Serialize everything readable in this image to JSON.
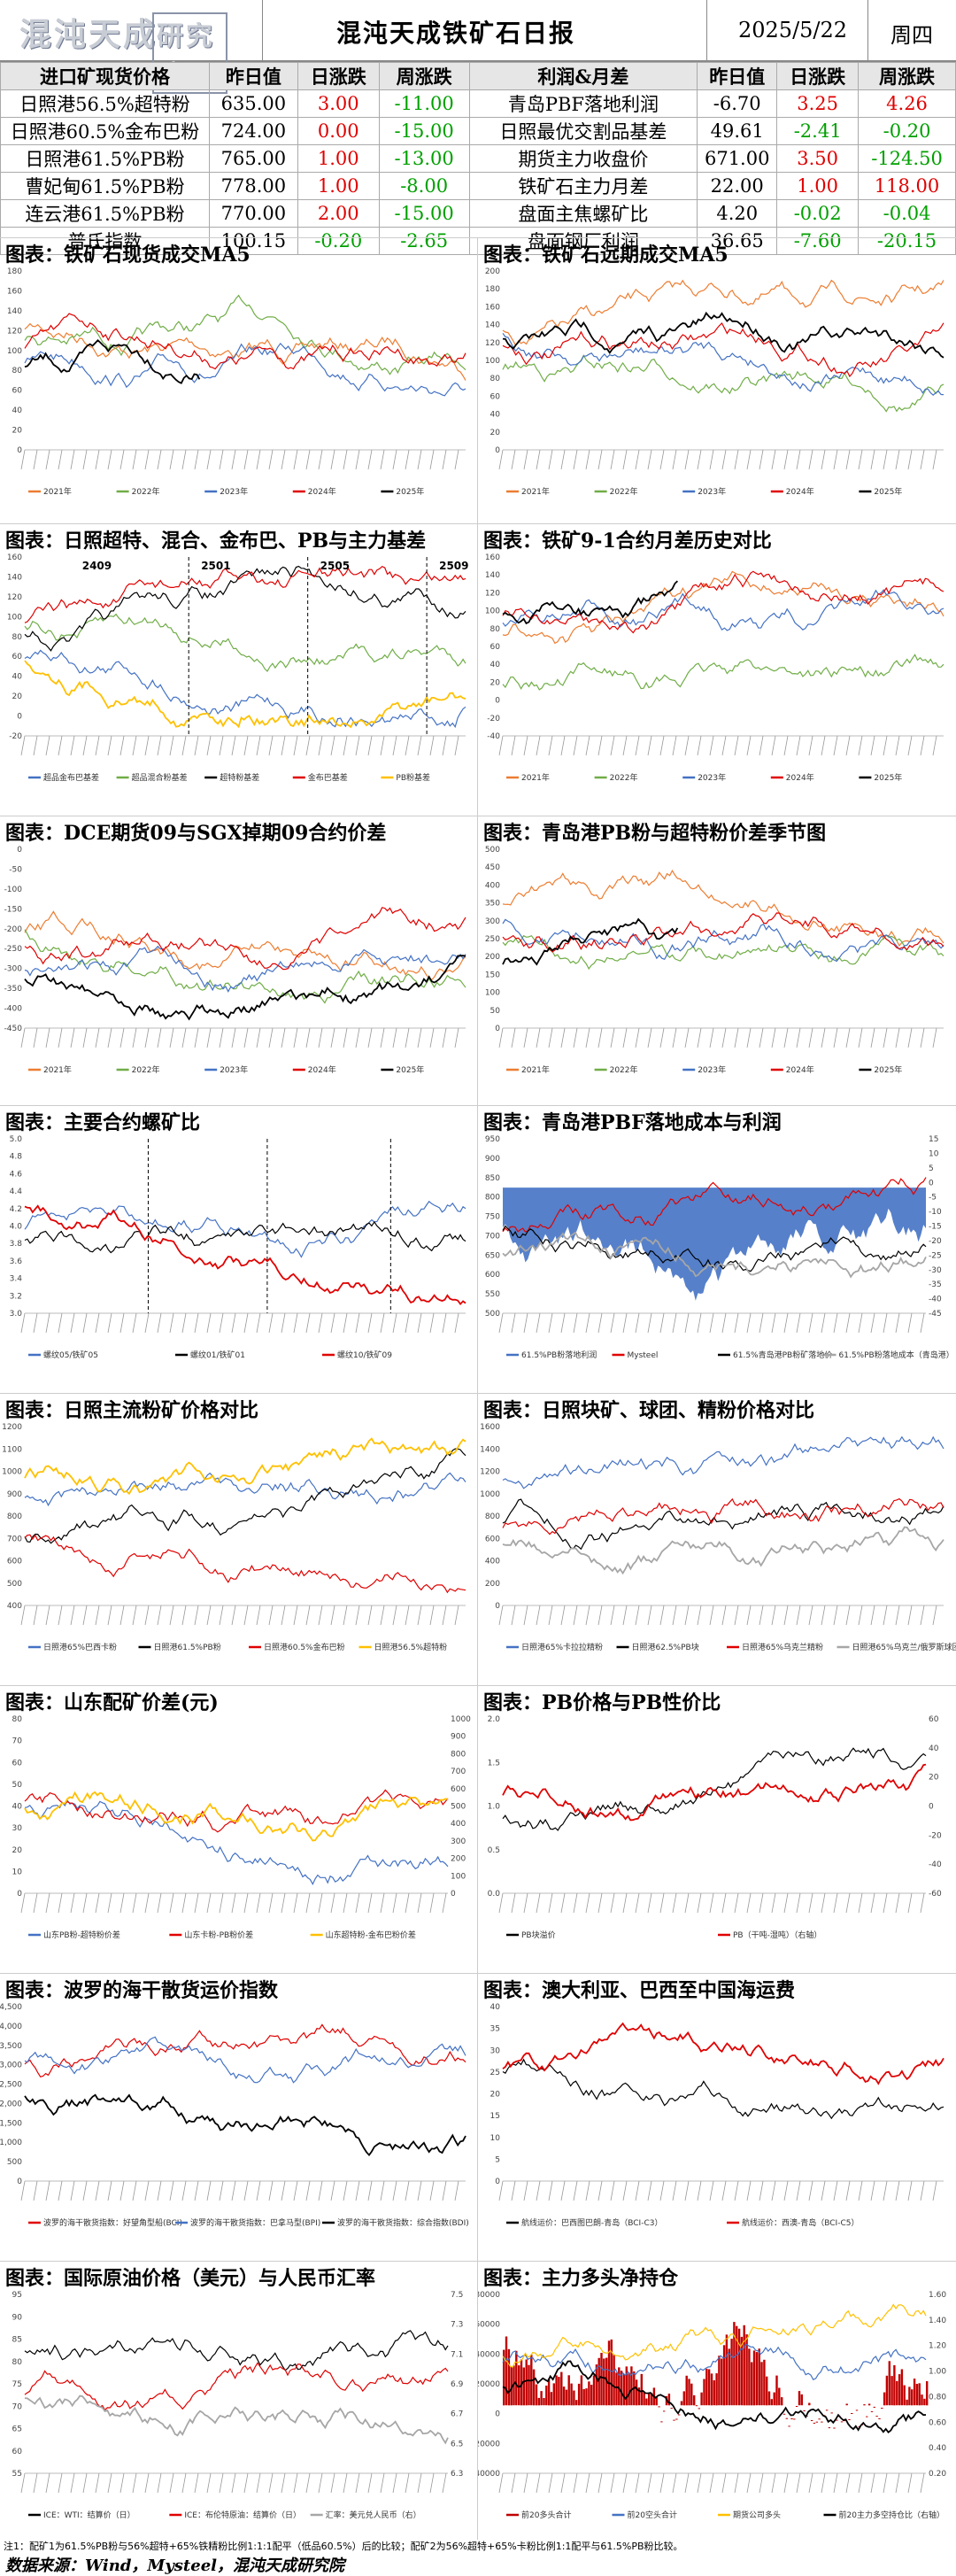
{
  "header": {
    "title": "混沌天成铁矿石日报",
    "date": "2025/5/22",
    "weekday": "周四"
  },
  "table": {
    "left_headers": [
      "进口矿现货价格",
      "昨日值",
      "日涨跌",
      "周涨跌"
    ],
    "right_headers": [
      "利润&月差",
      "昨日值",
      "日涨跌",
      "周涨跌"
    ],
    "left_rows": [
      {
        "name": "日照港56.5%超特粉",
        "value": "635.00",
        "day": "3.00",
        "week": "-11.00"
      },
      {
        "name": "日照港60.5%金布巴粉",
        "value": "724.00",
        "day": "0.00",
        "week": "-15.00"
      },
      {
        "name": "日照港61.5%PB粉",
        "value": "765.00",
        "day": "1.00",
        "week": "-13.00"
      },
      {
        "name": "曹妃甸61.5%PB粉",
        "value": "778.00",
        "day": "1.00",
        "week": "-8.00"
      },
      {
        "name": "连云港61.5%PB粉",
        "value": "770.00",
        "day": "2.00",
        "week": "-15.00"
      },
      {
        "name": "普氏指数",
        "value": "100.15",
        "day": "-0.20",
        "week": "-2.65"
      }
    ],
    "right_rows": [
      {
        "name": "青岛PBF落地利润",
        "value": "-6.70",
        "day": "3.25",
        "week": "4.26"
      },
      {
        "name": "日照最优交割品基差",
        "value": "49.61",
        "day": "-2.41",
        "week": "-0.20"
      },
      {
        "name": "期货主力收盘价",
        "value": "671.00",
        "day": "3.50",
        "week": "-124.50"
      },
      {
        "name": "铁矿石主力月差",
        "value": "22.00",
        "day": "1.00",
        "week": "118.00"
      },
      {
        "name": "盘面主焦螺矿比",
        "value": "4.20",
        "day": "-0.02",
        "week": "-0.04"
      },
      {
        "name": "盘面钢厂利润",
        "value": "36.65",
        "day": "-7.60",
        "week": "-20.15"
      }
    ]
  },
  "panels": [
    {
      "title": "图表：铁矿石现货成交MA5",
      "legend": [
        "2021年",
        "2022年",
        "2023年",
        "2024年",
        "2025年"
      ],
      "yticks": [
        "180",
        "160",
        "140",
        "120",
        "100",
        "80",
        "60",
        "40",
        "20",
        "0"
      ]
    },
    {
      "title": "图表：铁矿石远期成交MA5",
      "legend": [
        "2021年",
        "2022年",
        "2023年",
        "2024年",
        "2025年"
      ],
      "yticks": [
        "200",
        "180",
        "160",
        "140",
        "120",
        "100",
        "80",
        "60",
        "40",
        "20",
        "0"
      ]
    },
    {
      "title": "图表：日照超特、混合、金布巴、PB与主力基差",
      "legend": [
        "超品金布巴基差",
        "超品混合粉基差",
        "超特粉基差",
        "金布巴基差",
        "PB粉基差"
      ],
      "annotations": [
        "2409",
        "2501",
        "2505",
        "2509"
      ],
      "yticks": [
        "160",
        "140",
        "120",
        "100",
        "80",
        "60",
        "40",
        "20",
        "0",
        "-20"
      ]
    },
    {
      "title": "图表：铁矿9-1合约月差历史对比",
      "legend": [
        "2021年",
        "2022年",
        "2023年",
        "2024年",
        "2025年"
      ],
      "yticks": [
        "160",
        "140",
        "120",
        "100",
        "80",
        "60",
        "40",
        "20",
        "0",
        "-20",
        "-40"
      ]
    },
    {
      "title": "图表：DCE期货09与SGX掉期09合约价差",
      "legend": [
        "2021年",
        "2022年",
        "2023年",
        "2024年",
        "2025年"
      ],
      "yticks": [
        "0",
        "-50",
        "-100",
        "-150",
        "-200",
        "-250",
        "-300",
        "-350",
        "-400",
        "-450"
      ]
    },
    {
      "title": "图表：青岛港PB粉与超特粉价差季节图",
      "legend": [
        "2021年",
        "2022年",
        "2023年",
        "2024年",
        "2025年"
      ],
      "yticks": [
        "500",
        "450",
        "400",
        "350",
        "300",
        "250",
        "200",
        "150",
        "100",
        "50",
        "0"
      ]
    },
    {
      "title": "图表：主要合约螺矿比",
      "legend": [
        "螺纹05/铁矿05",
        "螺纹01/铁矿01",
        "螺纹10/铁矿09"
      ],
      "yticks": [
        "5.0",
        "4.8",
        "4.6",
        "4.4",
        "4.2",
        "4.0",
        "3.8",
        "3.6",
        "3.4",
        "3.2",
        "3.0"
      ]
    },
    {
      "title": "图表：青岛港PBF落地成本与利润",
      "legend": [
        "61.5%PB粉落地利润",
        "Mysteel",
        "61.5%青岛港PB粉矿落地价",
        "61.5%PB粉落地成本（青岛港）"
      ],
      "yticks": [
        "950",
        "900",
        "850",
        "800",
        "750",
        "700",
        "650",
        "600",
        "550",
        "500"
      ],
      "yticks_right": [
        "15",
        "10",
        "5",
        "0",
        "-5",
        "-10",
        "-15",
        "-20",
        "-25",
        "-30",
        "-35",
        "-40",
        "-45"
      ]
    },
    {
      "title": "图表：日照主流粉矿价格对比",
      "legend": [
        "日照港65%巴西卡粉",
        "日照港61.5%PB粉",
        "日照港60.5%金布巴粉",
        "日照港56.5%超特粉"
      ],
      "yticks": [
        "1200",
        "1100",
        "1000",
        "900",
        "800",
        "700",
        "600",
        "500",
        "400"
      ]
    },
    {
      "title": "图表：日照块矿、球团、精粉价格对比",
      "legend": [
        "日照港65%卡拉拉精粉",
        "日照港62.5%PB块",
        "日照港65%乌克兰精粉",
        "日照港65%乌克兰/俄罗斯球团"
      ],
      "yticks": [
        "1600",
        "1400",
        "1200",
        "1000",
        "800",
        "600",
        "400",
        "200",
        "0"
      ]
    },
    {
      "title": "图表：山东配矿价差(元)",
      "legend": [
        "山东PB粉-超特粉价差",
        "山东卡粉-PB粉价差",
        "山东超特粉-金布巴粉价差"
      ],
      "yticks": [
        "80",
        "70",
        "60",
        "50",
        "40",
        "30",
        "20",
        "10",
        "0"
      ],
      "yticks_right": [
        "1000",
        "900",
        "800",
        "700",
        "600",
        "500",
        "400",
        "300",
        "200",
        "100",
        "0"
      ]
    },
    {
      "title": "图表：PB价格与PB性价比",
      "legend": [
        "PB块溢价",
        "PB（干吨-湿吨）（右轴）"
      ],
      "yticks": [
        "2.0",
        "1.5",
        "1.0",
        "0.5",
        "0.0"
      ],
      "yticks_right": [
        "60",
        "40",
        "20",
        "0",
        "-20",
        "-40",
        "-60"
      ]
    },
    {
      "title": "图表：波罗的海干散货运价指数",
      "legend": [
        "波罗的海干散货指数：好望角型船(BCI)",
        "波罗的海干散货指数：巴拿马型(BPI)",
        "波罗的海干散货指数：综合指数(BDI)"
      ],
      "yticks": [
        "4,500",
        "4,000",
        "3,500",
        "3,000",
        "2,500",
        "2,000",
        "1,500",
        "1,000",
        "500",
        "0"
      ]
    },
    {
      "title": "图表：澳大利亚、巴西至中国海运费",
      "legend": [
        "航线运价：巴西图巴朗-青岛（BCI-C3）",
        "航线运价：西澳-青岛（BCI-C5）"
      ],
      "yticks": [
        "40",
        "35",
        "30",
        "25",
        "20",
        "15",
        "10",
        "5",
        "0"
      ]
    },
    {
      "title": "图表：国际原油价格（美元）与人民币汇率",
      "legend": [
        "ICE：WTI：结算价（日）",
        "ICE：布伦特原油：结算价（日）",
        "汇率：美元兑人民币（右）"
      ],
      "yticks": [
        "95",
        "90",
        "85",
        "80",
        "75",
        "70",
        "65",
        "60",
        "55"
      ],
      "yticks_right": [
        "7.5",
        "7.3",
        "7.1",
        "6.9",
        "6.7",
        "6.5",
        "6.3"
      ]
    },
    {
      "title": "图表：主力多头净持仓",
      "legend": [
        "前20多头合计",
        "前20空头合计",
        "期货公司多头",
        "前20主力多空持仓比（右轴）"
      ],
      "yticks": [
        "80000",
        "60000",
        "40000",
        "20000",
        "0",
        "-20000",
        "-40000"
      ],
      "yticks_right": [
        "1.60",
        "1.40",
        "1.20",
        "1.00",
        "0.80",
        "0.60",
        "0.40",
        "0.20"
      ]
    }
  ],
  "colors": {
    "s2021": "#ed7d31",
    "s2022": "#70ad47",
    "s2023": "#4472c4",
    "s2024": "#e00000",
    "s2025": "#000000",
    "gray": "#a6a6a6",
    "yellow": "#ffc000",
    "blue_fill": "#4472c4",
    "dark_red_fill": "#c00000"
  },
  "footer": {
    "note": "注1：配矿1为61.5%PB粉与56%超特+65%铁精粉比例1:1:1配平（低品60.5%）后的比较；配矿2为56%超特+65%卡粉比例1:1配平与61.5%PB粉比较。",
    "source": "数据来源：Wind，Mysteel，混沌天成研究院"
  }
}
